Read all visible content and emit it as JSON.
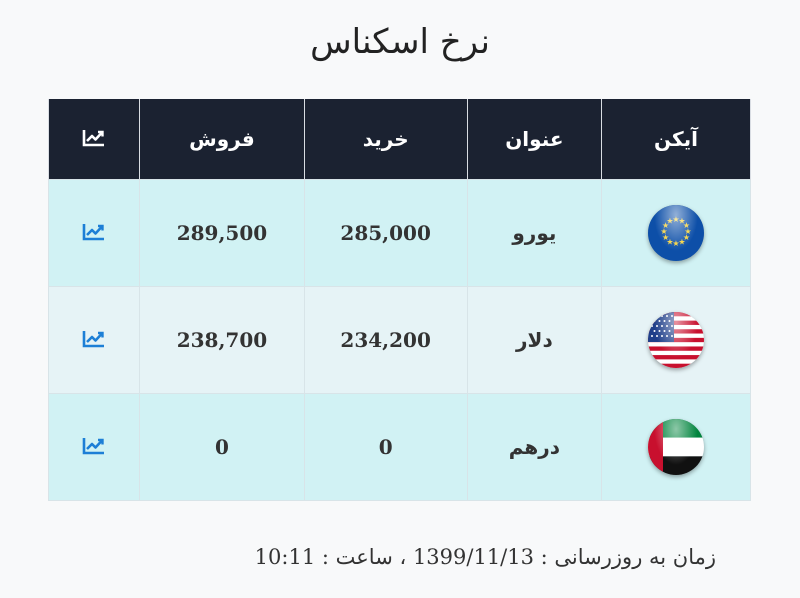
{
  "page": {
    "title": "نرخ اسکناس"
  },
  "table": {
    "headers": {
      "icon": "آیکن",
      "name": "عنوان",
      "buy": "خرید",
      "sell": "فروش",
      "chart_icon": "chart-line-icon"
    },
    "rows": [
      {
        "flag_icon": "eu-flag-icon",
        "name": "یورو",
        "buy": "285,000",
        "sell": "289,500",
        "chart_icon": "chart-line-icon"
      },
      {
        "flag_icon": "us-flag-icon",
        "name": "دلار",
        "buy": "234,200",
        "sell": "238,700",
        "chart_icon": "chart-line-icon"
      },
      {
        "flag_icon": "uae-flag-icon",
        "name": "درهم",
        "buy": "0",
        "sell": "0",
        "chart_icon": "chart-line-icon"
      }
    ]
  },
  "footer": {
    "label": "زمان به روزرسانی :",
    "date": "1399/11/13",
    "separator": "، ساعت :",
    "time": "10:11"
  },
  "colors": {
    "header_bg": "#1b2231",
    "row_a_bg": "#d1f2f4",
    "row_b_bg": "#e6f3f6",
    "chart_icon": "#1d7fd6",
    "eu_blue": "#0d4fa8",
    "eu_star": "#f6d23a"
  }
}
